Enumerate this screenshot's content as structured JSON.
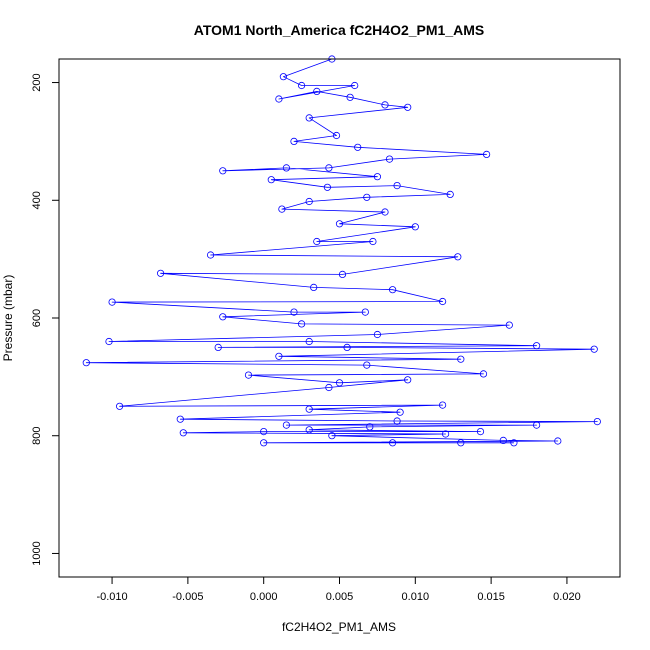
{
  "chart_data": {
    "type": "scatter",
    "title": "ATOM1 North_America fC2H4O2_PM1_AMS",
    "xlabel": "fC2H4O2_PM1_AMS",
    "ylabel": "Pressure (mbar)",
    "xlim": [
      -0.0135,
      0.0235
    ],
    "ylim": [
      1040,
      160
    ],
    "y_reversed": true,
    "grid": false,
    "x_ticks": [
      -0.01,
      -0.005,
      0.0,
      0.005,
      0.01,
      0.015,
      0.02
    ],
    "x_tick_labels": [
      "-0.010",
      "-0.005",
      "0.000",
      "0.005",
      "0.010",
      "0.015",
      "0.020"
    ],
    "y_ticks": [
      200,
      400,
      600,
      800,
      1000
    ],
    "y_tick_labels": [
      "200",
      "400",
      "600",
      "800",
      "1000"
    ],
    "series": [
      {
        "style": "line-with-open-circles",
        "color": "#0000ff",
        "points": [
          [
            0.0045,
            160
          ],
          [
            0.0013,
            190
          ],
          [
            0.0025,
            205
          ],
          [
            0.006,
            205
          ],
          [
            0.001,
            228
          ],
          [
            0.0035,
            215
          ],
          [
            0.0057,
            225
          ],
          [
            0.008,
            238
          ],
          [
            0.0095,
            242
          ],
          [
            0.003,
            260
          ],
          [
            0.0048,
            290
          ],
          [
            0.002,
            300
          ],
          [
            0.0062,
            310
          ],
          [
            0.0147,
            322
          ],
          [
            0.0083,
            330
          ],
          [
            0.0043,
            345
          ],
          [
            -0.0027,
            350
          ],
          [
            0.0015,
            345
          ],
          [
            0.0075,
            360
          ],
          [
            0.0005,
            365
          ],
          [
            0.0042,
            378
          ],
          [
            0.0088,
            375
          ],
          [
            0.0123,
            390
          ],
          [
            0.0068,
            395
          ],
          [
            0.003,
            402
          ],
          [
            0.0012,
            415
          ],
          [
            0.008,
            420
          ],
          [
            0.005,
            440
          ],
          [
            0.01,
            445
          ],
          [
            0.0035,
            470
          ],
          [
            0.0072,
            470
          ],
          [
            -0.0035,
            493
          ],
          [
            0.0128,
            496
          ],
          [
            0.0052,
            526
          ],
          [
            -0.0068,
            524
          ],
          [
            0.0033,
            548
          ],
          [
            0.0085,
            552
          ],
          [
            0.0118,
            572
          ],
          [
            -0.01,
            573
          ],
          [
            0.002,
            590
          ],
          [
            0.0067,
            590
          ],
          [
            -0.0027,
            598
          ],
          [
            0.0025,
            610
          ],
          [
            0.0162,
            612
          ],
          [
            0.0075,
            628
          ],
          [
            -0.0102,
            640
          ],
          [
            0.003,
            640
          ],
          [
            0.018,
            647
          ],
          [
            -0.003,
            650
          ],
          [
            0.0055,
            650
          ],
          [
            0.0218,
            653
          ],
          [
            0.001,
            665
          ],
          [
            0.013,
            670
          ],
          [
            -0.0117,
            676
          ],
          [
            0.0068,
            680
          ],
          [
            0.0145,
            695
          ],
          [
            -0.001,
            697
          ],
          [
            0.005,
            710
          ],
          [
            0.0095,
            705
          ],
          [
            0.0043,
            718
          ],
          [
            -0.0095,
            750
          ],
          [
            0.0118,
            748
          ],
          [
            0.003,
            755
          ],
          [
            0.009,
            760
          ],
          [
            -0.0055,
            772
          ],
          [
            0.0088,
            775
          ],
          [
            0.022,
            776
          ],
          [
            0.0015,
            782
          ],
          [
            0.018,
            782
          ],
          [
            0.007,
            785
          ],
          [
            0.003,
            790
          ],
          [
            0.0143,
            793
          ],
          [
            0.0,
            793
          ],
          [
            -0.0053,
            795
          ],
          [
            0.012,
            797
          ],
          [
            0.0045,
            800
          ],
          [
            0.0158,
            808
          ],
          [
            0.0194,
            809
          ],
          [
            0.0,
            812
          ],
          [
            0.0085,
            812
          ],
          [
            0.013,
            812
          ],
          [
            0.0165,
            812
          ]
        ]
      }
    ]
  }
}
